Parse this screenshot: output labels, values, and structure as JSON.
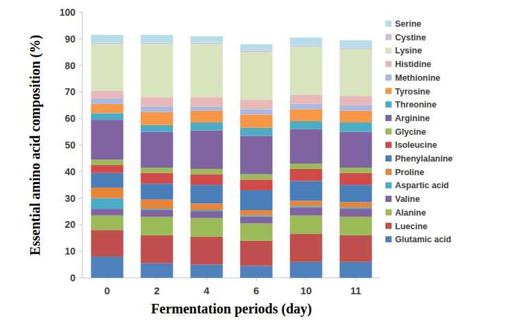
{
  "chart_data": {
    "type": "bar",
    "stacked": true,
    "legend": "right",
    "grid": false,
    "x_label": "Fermentation periods (day)",
    "y_label": "Essential amino acid composition (%)",
    "categories": [
      "0",
      "2",
      "4",
      "6",
      "10",
      "11"
    ],
    "ylim": [
      0,
      100
    ],
    "yticks": [
      0,
      10,
      20,
      30,
      40,
      50,
      60,
      70,
      80,
      90,
      100
    ],
    "series": [
      {
        "name": "Glutamic acid",
        "color": "#4f81bd",
        "values": [
          8,
          5.5,
          5,
          4.5,
          6,
          6
        ]
      },
      {
        "name": "Luecine",
        "color": "#c0504d",
        "values": [
          10,
          10.5,
          10.5,
          9.5,
          10.5,
          10
        ]
      },
      {
        "name": "Alanine",
        "color": "#9bbb59",
        "values": [
          5.5,
          7,
          7,
          6.5,
          7,
          7
        ]
      },
      {
        "name": "Valine",
        "color": "#8064a2",
        "values": [
          2.5,
          2.5,
          2.5,
          2.5,
          3,
          3
        ]
      },
      {
        "name": "Aspartic acid",
        "color": "#4bacc6",
        "values": [
          4,
          0.5,
          0.5,
          0.5,
          0.5,
          0.5
        ]
      },
      {
        "name": "Proline",
        "color": "#e8833a",
        "values": [
          4,
          3.5,
          2.5,
          2,
          2,
          2
        ]
      },
      {
        "name": "Phenylalanine",
        "color": "#4a7ebb",
        "values": [
          5.5,
          6,
          7,
          7.5,
          7.5,
          6.5
        ]
      },
      {
        "name": "Isoleucine",
        "color": "#d04b48",
        "values": [
          3,
          4,
          4,
          4,
          4.5,
          4.5
        ]
      },
      {
        "name": "Glycine",
        "color": "#9bbb59",
        "values": [
          2,
          2,
          2,
          2,
          2,
          2
        ]
      },
      {
        "name": "Arginine",
        "color": "#8064a2",
        "values": [
          15,
          13.5,
          14.5,
          14.5,
          13,
          13.5
        ]
      },
      {
        "name": "Threonine",
        "color": "#4bacc6",
        "values": [
          2.5,
          2.5,
          3,
          3,
          3,
          3.5
        ]
      },
      {
        "name": "Tyrosine",
        "color": "#f79646",
        "values": [
          3.5,
          5,
          4.5,
          5,
          4.5,
          4.5
        ]
      },
      {
        "name": "Methionine",
        "color": "#a7b9e3",
        "values": [
          2,
          2,
          1.5,
          2,
          2,
          2
        ]
      },
      {
        "name": "Histidine",
        "color": "#e6b9b8",
        "values": [
          3,
          3.5,
          3.5,
          3.5,
          3.5,
          3.5
        ]
      },
      {
        "name": "Lysine",
        "color": "#d7e4bd",
        "values": [
          17.5,
          20,
          20,
          18,
          18,
          17.5
        ]
      },
      {
        "name": "Cystine",
        "color": "#ccc1da",
        "values": [
          0.5,
          0.5,
          0.5,
          0.5,
          0.5,
          0.5
        ]
      },
      {
        "name": "Serine",
        "color": "#b7dee8",
        "values": [
          3,
          3,
          2.5,
          2.5,
          3,
          3
        ]
      }
    ]
  }
}
